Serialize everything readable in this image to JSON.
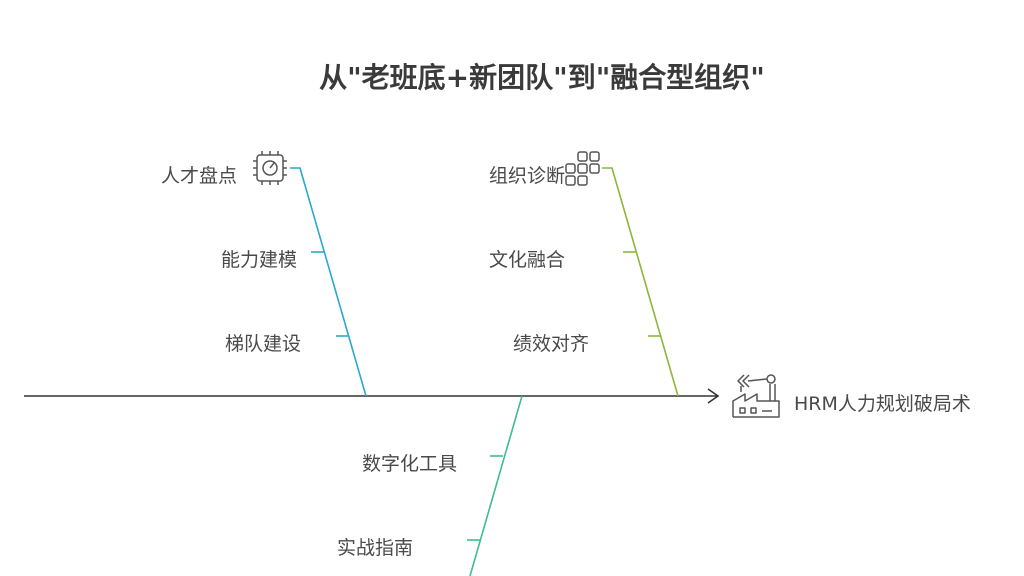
{
  "title": "从\"老班底+新团队\"到\"融合型组织\"",
  "effect": {
    "label": "HRM人力规划破局术",
    "icon": "factory-robot-arm-icon"
  },
  "branches": [
    {
      "id": "talent",
      "color": "#29a9cf",
      "icon": "chip-gauge-icon",
      "items": [
        "人才盘点",
        "能力建模",
        "梯队建设"
      ]
    },
    {
      "id": "org",
      "color": "#8ab73a",
      "icon": "grid-squares-icon",
      "items": [
        "组织诊断",
        "文化融合",
        "绩效对齐"
      ]
    },
    {
      "id": "tools",
      "color": "#3bbf8f",
      "icon": "",
      "items": [
        "数字化工具",
        "实战指南"
      ]
    }
  ],
  "colors": {
    "spine": "#333333",
    "text": "#4a4a4a",
    "icon": "#555555"
  }
}
